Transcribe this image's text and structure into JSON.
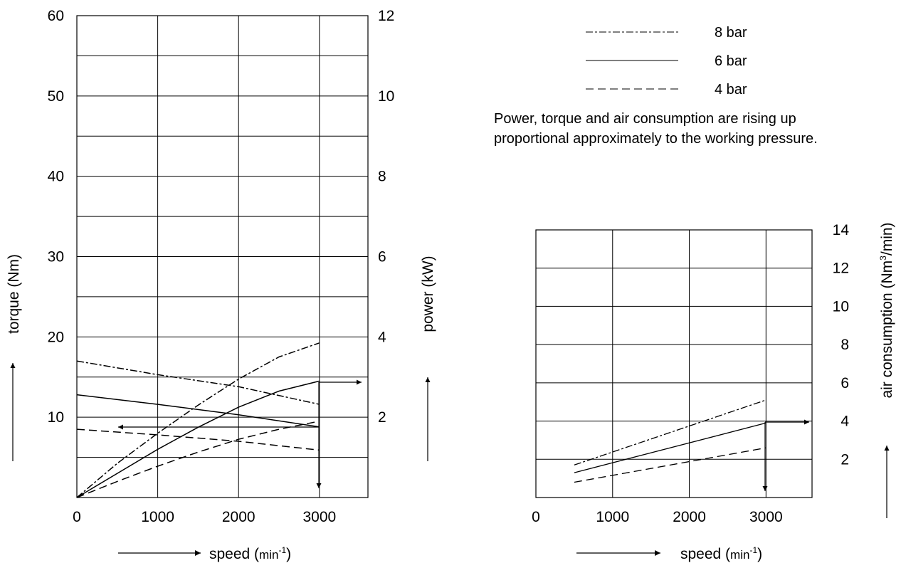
{
  "legend": [
    {
      "label": "8 bar",
      "style": "dash-dot"
    },
    {
      "label": "6 bar",
      "style": "solid"
    },
    {
      "label": "4 bar",
      "style": "long-dash"
    }
  ],
  "note": {
    "line1": "Power, torque and air consumption are rising up",
    "line2": "proportional approximately to the working pressure."
  },
  "chart_data": [
    {
      "type": "line",
      "title": "",
      "xlabel": "speed (min-1)",
      "xlabel_main": "speed (",
      "xlabel_unit": "min",
      "xlabel_sup": "-1",
      "xlabel_close": ")",
      "ylabel_left": "torque (Nm)",
      "ylabel_right": "power (kW)",
      "xlim": [
        0,
        3600
      ],
      "ylim_left": [
        0,
        60
      ],
      "ylim_right": [
        0,
        12
      ],
      "x_ticks": [
        "0",
        "1000",
        "2000",
        "3000"
      ],
      "y_ticks_left": [
        "10",
        "20",
        "30",
        "40",
        "50",
        "60"
      ],
      "y_ticks_right": [
        "2",
        "4",
        "6",
        "8",
        "10",
        "12"
      ],
      "grid": true,
      "series": [
        {
          "name": "8 bar",
          "quantity": "torque",
          "axis": "left",
          "style": "dash-dot",
          "x": [
            0,
            1000,
            2000,
            3000
          ],
          "y": [
            17.0,
            15.3,
            13.8,
            11.6
          ]
        },
        {
          "name": "6 bar",
          "quantity": "torque",
          "axis": "left",
          "style": "solid",
          "x": [
            0,
            1000,
            2000,
            3000
          ],
          "y": [
            12.8,
            11.6,
            10.3,
            8.8
          ]
        },
        {
          "name": "4 bar",
          "quantity": "torque",
          "axis": "left",
          "style": "long-dash",
          "x": [
            0,
            1000,
            2000,
            3000
          ],
          "y": [
            8.5,
            7.8,
            7.0,
            5.9
          ]
        },
        {
          "name": "8 bar",
          "quantity": "power",
          "axis": "right",
          "style": "dash-dot",
          "x": [
            0,
            500,
            1000,
            1500,
            2000,
            2500,
            3000
          ],
          "y": [
            0.0,
            0.85,
            1.6,
            2.3,
            2.95,
            3.5,
            3.85
          ]
        },
        {
          "name": "6 bar",
          "quantity": "power",
          "axis": "right",
          "style": "solid",
          "x": [
            0,
            500,
            1000,
            1500,
            2000,
            2500,
            3000
          ],
          "y": [
            0.0,
            0.6,
            1.2,
            1.75,
            2.25,
            2.65,
            2.9
          ]
        },
        {
          "name": "4 bar",
          "quantity": "power",
          "axis": "right",
          "style": "long-dash",
          "x": [
            0,
            500,
            1000,
            1500,
            2000,
            2500,
            3000
          ],
          "y": [
            0.0,
            0.4,
            0.78,
            1.13,
            1.45,
            1.7,
            1.9
          ]
        }
      ]
    },
    {
      "type": "line",
      "title": "",
      "xlabel": "speed (min-1)",
      "xlabel_main": "speed (",
      "xlabel_unit": "min",
      "xlabel_sup": "-1",
      "xlabel_close": ")",
      "ylabel": "air consumption (Nm3/min)",
      "ylabel_main": "air consumption (Nm",
      "ylabel_sup": "3",
      "ylabel_close": "/min)",
      "xlim": [
        0,
        3600
      ],
      "ylim": [
        0,
        14
      ],
      "x_ticks": [
        "0",
        "1000",
        "2000",
        "3000"
      ],
      "y_ticks": [
        "2",
        "4",
        "6",
        "8",
        "10",
        "12",
        "14"
      ],
      "grid": true,
      "series": [
        {
          "name": "8 bar",
          "style": "dash-dot",
          "x": [
            500,
            3000
          ],
          "y": [
            1.7,
            5.1
          ]
        },
        {
          "name": "6 bar",
          "style": "solid",
          "x": [
            500,
            3000
          ],
          "y": [
            1.3,
            3.9
          ]
        },
        {
          "name": "4 bar",
          "style": "long-dash",
          "x": [
            500,
            3000
          ],
          "y": [
            0.8,
            2.6
          ]
        }
      ]
    }
  ]
}
